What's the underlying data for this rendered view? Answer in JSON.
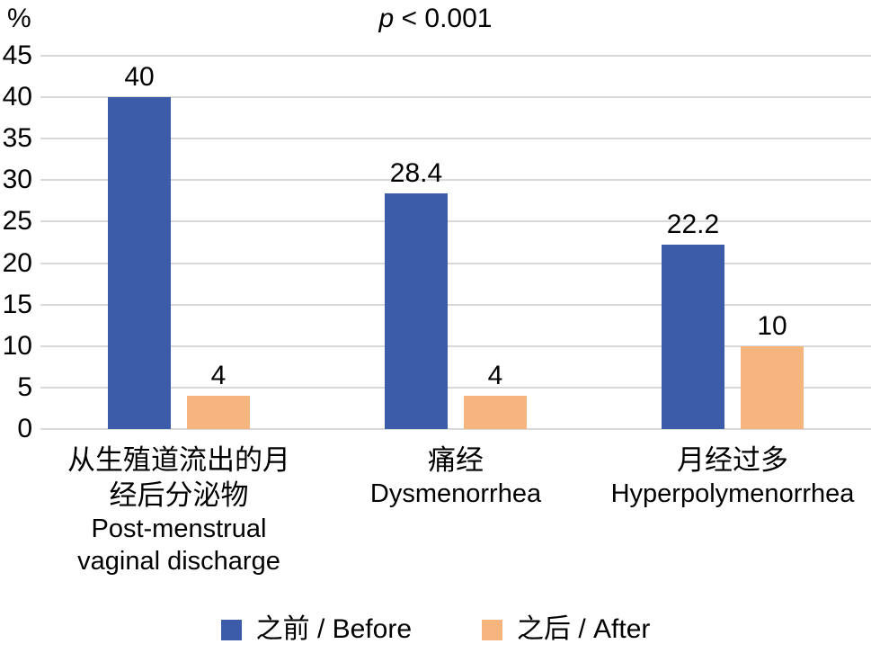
{
  "percent_label": "%",
  "title": {
    "p_symbol": "p",
    "rest": " < 0.001"
  },
  "colors": {
    "before_bar": "#3C5BA9",
    "after_bar": "#F6B47F",
    "gridline": "#D9D9D9",
    "text": "#000000"
  },
  "chart_data": {
    "type": "bar",
    "title": "p < 0.001",
    "ylabel": "%",
    "ylim": [
      0,
      45
    ],
    "ytick_step": 5,
    "grid": true,
    "legend_position": "bottom",
    "categories": [
      {
        "zh_lines": [
          "从生殖道流出的月",
          "经后分泌物"
        ],
        "en_lines": [
          "Post-menstrual",
          "vaginal discharge"
        ]
      },
      {
        "zh_lines": [
          "痛经"
        ],
        "en_lines": [
          "Dysmenorrhea"
        ]
      },
      {
        "zh_lines": [
          "月经过多"
        ],
        "en_lines": [
          "Hyperpolymenorrhea"
        ]
      }
    ],
    "series": [
      {
        "name": "之前 / Before",
        "color": "#3C5BA9",
        "values": [
          40,
          28.4,
          22.2
        ],
        "labels": [
          "40",
          "28.4",
          "22.2"
        ]
      },
      {
        "name": "之后 / After",
        "color": "#F6B47F",
        "values": [
          4,
          4,
          10
        ],
        "labels": [
          "4",
          "4",
          "10"
        ]
      }
    ]
  }
}
